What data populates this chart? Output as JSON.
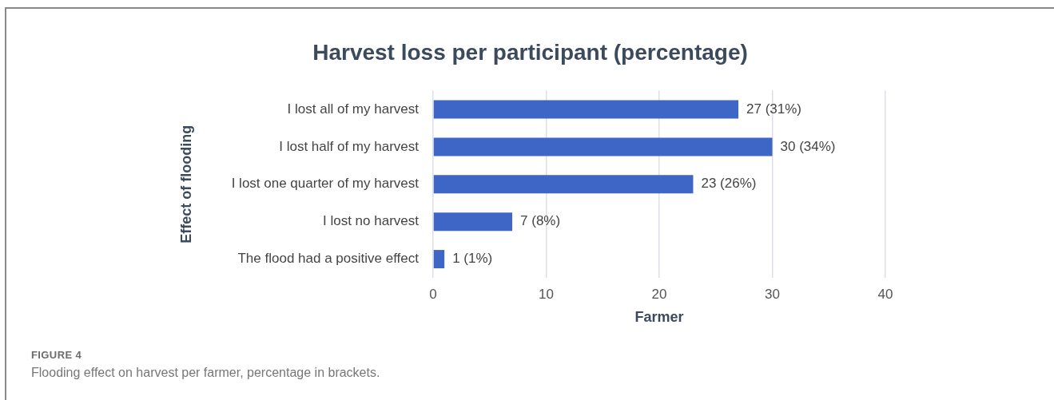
{
  "chart_data": {
    "type": "bar",
    "orientation": "horizontal",
    "title": "Harvest loss per participant (percentage)",
    "xlabel": "Farmer",
    "ylabel": "Effect of flooding",
    "categories": [
      "I lost all of my harvest",
      "I lost half of my harvest",
      "I lost one quarter of my harvest",
      "I lost no harvest",
      "The flood had a positive effect"
    ],
    "values": [
      27,
      30,
      23,
      7,
      1
    ],
    "value_labels": [
      "27 (31%)",
      "30 (34%)",
      "23 (26%)",
      "7 (8%)",
      "1 (1%)"
    ],
    "color": "#3d66c6",
    "xlim": [
      0,
      40
    ],
    "xticks": [
      0,
      10,
      20,
      30,
      40
    ],
    "grid": "x",
    "annotations": [
      "FIGURE 4",
      "Flooding effect on harvest per farmer, percentage in brackets."
    ]
  }
}
